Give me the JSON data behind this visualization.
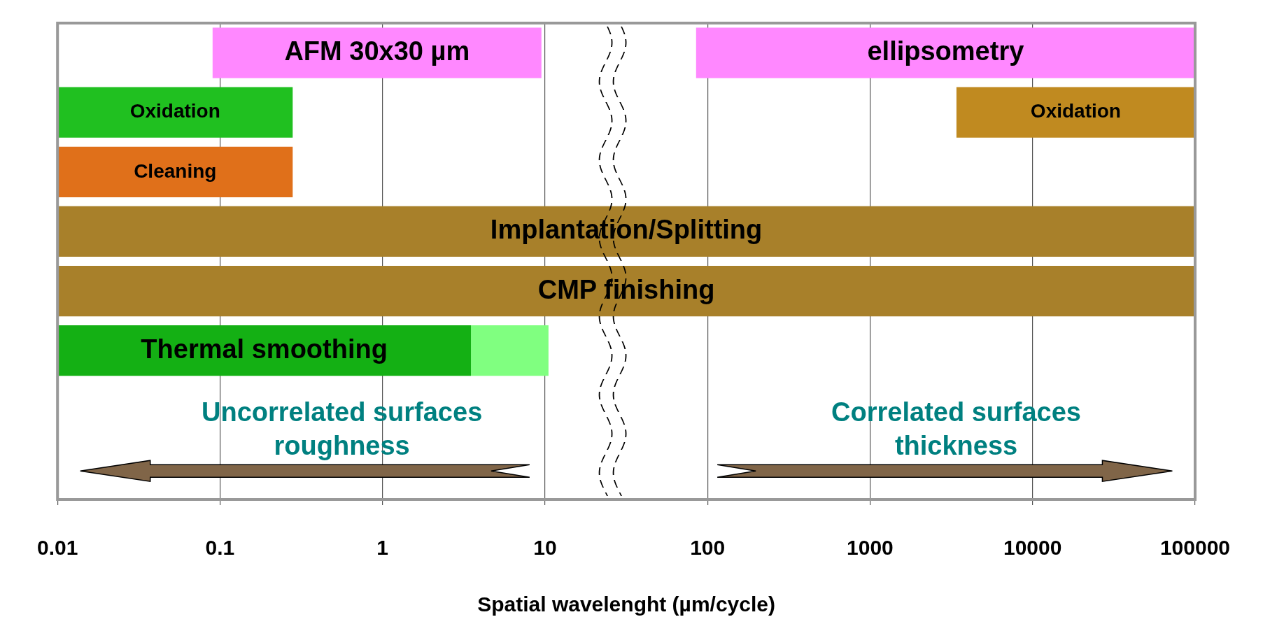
{
  "chart_data": {
    "type": "bar",
    "orientation": "horizontal",
    "log": "x",
    "grid": "x",
    "legend": false,
    "tick_labels": "x",
    "xlabel": "Spatial wavelenght (µm/cycle)",
    "xlim": [
      0.01,
      100000
    ],
    "xticks": [
      0.01,
      0.1,
      1,
      10,
      100,
      1000,
      10000,
      100000
    ],
    "categories": [
      null,
      null,
      null,
      null,
      null,
      null,
      null,
      null
    ],
    "series": [
      {
        "name": "AFM 30x30 µm",
        "color": "#ff88ff",
        "base": [
          0.09,
          null,
          null,
          null,
          null,
          null,
          null,
          null
        ],
        "values": [
          9.41,
          null,
          null,
          null,
          null,
          null,
          null,
          null
        ]
      },
      {
        "name": "ellipsometry",
        "color": "#ff88ff",
        "base": [
          85,
          null,
          null,
          null,
          null,
          null,
          null,
          null
        ],
        "values": [
          99915,
          null,
          null,
          null,
          null,
          null,
          null,
          null
        ]
      },
      {
        "name": "Oxidation",
        "color": "#20c020",
        "base": [
          null,
          0.01,
          null,
          null,
          null,
          null,
          null,
          null
        ],
        "values": [
          null,
          0.27,
          null,
          null,
          null,
          null,
          null,
          null
        ]
      },
      {
        "name": "Oxidation",
        "color": "#c08a20",
        "base": [
          null,
          3400,
          null,
          null,
          null,
          null,
          null,
          null
        ],
        "values": [
          null,
          96600,
          null,
          null,
          null,
          null,
          null,
          null
        ]
      },
      {
        "name": "Cleaning",
        "color": "#e0701a",
        "base": [
          null,
          null,
          0.01,
          null,
          null,
          null,
          null,
          null
        ],
        "values": [
          null,
          null,
          0.27,
          null,
          null,
          null,
          null,
          null
        ]
      },
      {
        "name": "Implantation/Splitting",
        "color": "#a8802a",
        "base": [
          null,
          null,
          null,
          0.01,
          null,
          null,
          null,
          null
        ],
        "values": [
          null,
          null,
          null,
          99999.99,
          null,
          null,
          null,
          null
        ]
      },
      {
        "name": "CMP finishing",
        "color": "#a8802a",
        "base": [
          null,
          null,
          null,
          null,
          0.01,
          null,
          null,
          null
        ],
        "values": [
          null,
          null,
          null,
          null,
          99999.99,
          null,
          null,
          null
        ]
      },
      {
        "name": "Thermal smoothing",
        "color": "#14b014",
        "base": [
          null,
          null,
          null,
          null,
          null,
          0.01,
          null,
          null
        ],
        "values": [
          null,
          null,
          null,
          null,
          null,
          3.49,
          null,
          null
        ]
      },
      {
        "color": "#80ff80",
        "base": [
          null,
          null,
          null,
          null,
          null,
          3.5,
          null,
          null
        ],
        "values": [
          null,
          null,
          null,
          null,
          null,
          7,
          null,
          null
        ]
      }
    ],
    "annotations": [
      "Uncorrelated surfaces roughness",
      "Correlated surfaces thickness"
    ]
  }
}
